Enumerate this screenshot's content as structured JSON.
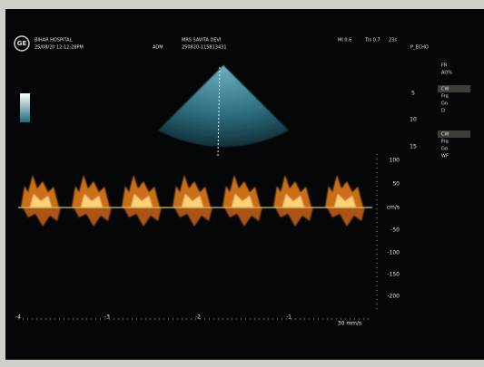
{
  "header": {
    "logo": "GE",
    "hospital": "BIHAR HOSPITAL",
    "datetime": "25/08/20 12:12:28PM",
    "operator": "ADM",
    "patient": "MRS SAVITA DEVI",
    "patient_id": "250820-115813431",
    "mi": "MI 0.6",
    "tis": "TIs 0.7",
    "frame_time": "23s",
    "preset": "P_ECHO"
  },
  "depth_scale": [
    "5",
    "10",
    "15"
  ],
  "panel": [
    "FR",
    "AO%",
    "CW",
    "Frq",
    "Gn",
    "D",
    "CW",
    "Frq",
    "Gn",
    "WF"
  ],
  "velocity_scale": [
    "100",
    "50",
    "cm/s",
    "-50",
    "-100",
    "-150",
    "-200"
  ],
  "time_scale": [
    "-4",
    "-3",
    "-2",
    "-1"
  ],
  "sweep": "30 mm/s"
}
